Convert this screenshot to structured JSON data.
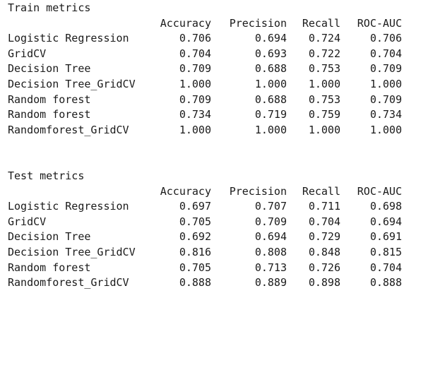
{
  "columns": [
    "Accuracy",
    "Precision",
    "Recall",
    "ROC-AUC"
  ],
  "train": {
    "title": "Train metrics",
    "rows": [
      {
        "label": "Logistic Regression",
        "values": [
          "0.706",
          "0.694",
          "0.724",
          "0.706"
        ]
      },
      {
        "label": "GridCV",
        "values": [
          "0.704",
          "0.693",
          "0.722",
          "0.704"
        ]
      },
      {
        "label": "Decision Tree",
        "values": [
          "0.709",
          "0.688",
          "0.753",
          "0.709"
        ]
      },
      {
        "label": "Decision Tree_GridCV",
        "values": [
          "1.000",
          "1.000",
          "1.000",
          "1.000"
        ]
      },
      {
        "label": "Random forest",
        "values": [
          "0.709",
          "0.688",
          "0.753",
          "0.709"
        ]
      },
      {
        "label": "Random forest",
        "values": [
          "0.734",
          "0.719",
          "0.759",
          "0.734"
        ]
      },
      {
        "label": "Randomforest_GridCV",
        "values": [
          "1.000",
          "1.000",
          "1.000",
          "1.000"
        ]
      }
    ]
  },
  "test": {
    "title": "Test metrics",
    "rows": [
      {
        "label": "Logistic Regression",
        "values": [
          "0.697",
          "0.707",
          "0.711",
          "0.698"
        ]
      },
      {
        "label": "GridCV",
        "values": [
          "0.705",
          "0.709",
          "0.704",
          "0.694"
        ]
      },
      {
        "label": "Decision Tree",
        "values": [
          "0.692",
          "0.694",
          "0.729",
          "0.691"
        ]
      },
      {
        "label": "Decision Tree_GridCV",
        "values": [
          "0.816",
          "0.808",
          "0.848",
          "0.815"
        ]
      },
      {
        "label": "Random forest",
        "values": [
          "0.705",
          "0.713",
          "0.726",
          "0.704"
        ]
      },
      {
        "label": "Randomforest_GridCV",
        "values": [
          "0.888",
          "0.889",
          "0.898",
          "0.888"
        ]
      }
    ]
  }
}
